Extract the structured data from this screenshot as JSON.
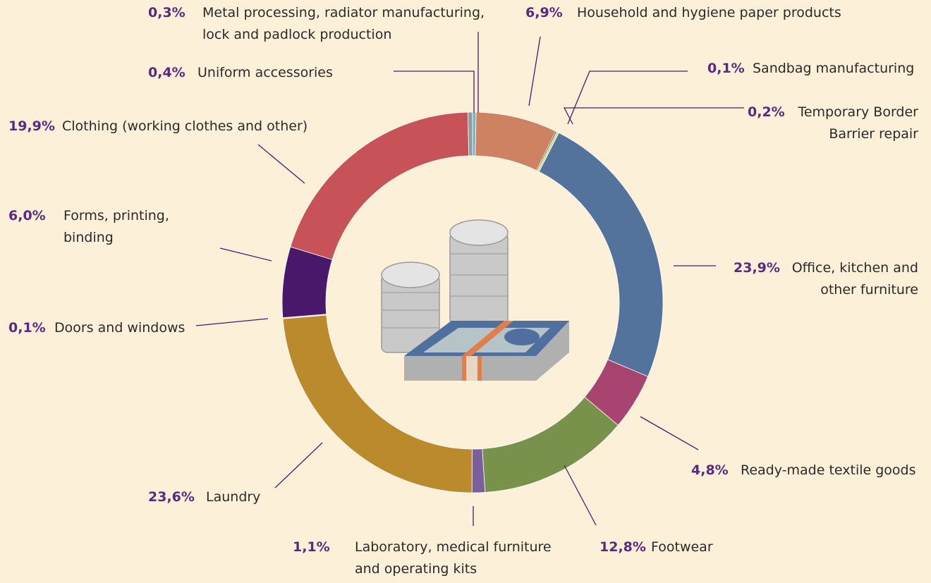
{
  "chart_data": {
    "type": "donut",
    "categories": [
      "Uniform accessories",
      "Metal processing, radiator manufacturing, lock and padlock production",
      "Household and hygiene paper products",
      "Sandbag manufacturing",
      "Temporary Border Barrier repair",
      "Office, kitchen and other furniture",
      "Ready-made textile goods",
      "Footwear",
      "Laboratory, medical furniture and operating kits",
      "Laundry",
      "Doors and windows",
      "Forms, printing, binding",
      "Clothing (working clothes and other)"
    ],
    "values": [
      0.4,
      0.3,
      6.9,
      0.1,
      0.2,
      23.9,
      4.8,
      12.8,
      1.1,
      23.6,
      0.1,
      6.0,
      19.9
    ],
    "value_labels": [
      "0,4%",
      "0,3%",
      "6,9%",
      "0,1%",
      "0,2%",
      "23,9%",
      "4,8%",
      "12,8%",
      "1,1%",
      "23,6%",
      "0,1%",
      "6,0%",
      "19,9%"
    ],
    "colors": [
      "#8e9ca2",
      "#7fb5ba",
      "#cf8262",
      "#222222",
      "#c9e08c",
      "#53739d",
      "#a8446f",
      "#78914b",
      "#7a5f9a",
      "#ba8a2d",
      "#e2dacb",
      "#4a186a",
      "#c75358"
    ]
  }
}
